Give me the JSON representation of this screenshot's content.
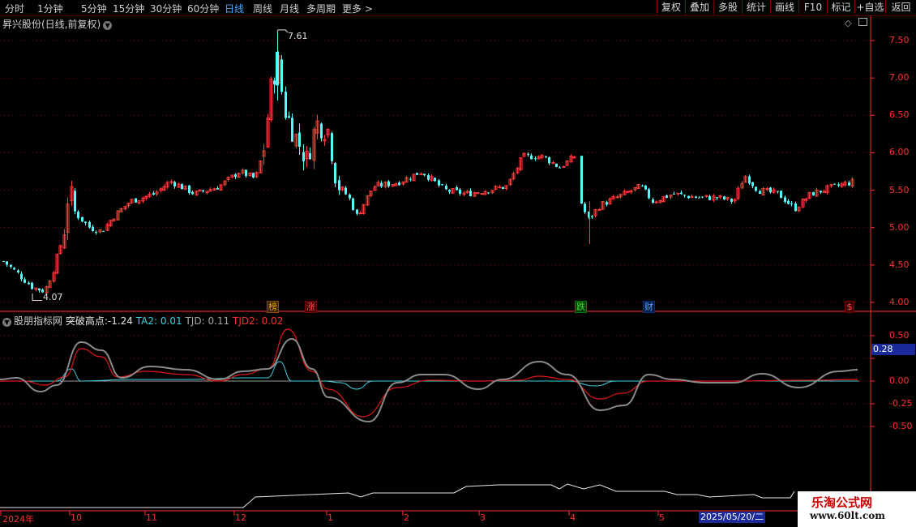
{
  "toolbar": {
    "periods": [
      {
        "label": "分时",
        "active": false
      },
      {
        "label": "1分钟",
        "active": false
      },
      {
        "label": "5分钟",
        "active": false
      },
      {
        "label": "15分钟",
        "active": false
      },
      {
        "label": "30分钟",
        "active": false
      },
      {
        "label": "60分钟",
        "active": false
      },
      {
        "label": "日线",
        "active": true
      },
      {
        "label": "周线",
        "active": false
      },
      {
        "label": "月线",
        "active": false
      },
      {
        "label": "多周期",
        "active": false
      },
      {
        "label": "更多",
        "active": false
      }
    ],
    "right_buttons": [
      "复权",
      "叠加",
      "多股",
      "统计",
      "画线",
      "F10",
      "标记",
      "+自选",
      "返回"
    ]
  },
  "stock_title": "昇兴股份(日线,前复权)",
  "price_axis": [
    "7.50",
    "7.00",
    "6.50",
    "6.00",
    "5.50",
    "5.00",
    "4.50",
    "4.00"
  ],
  "annotations": {
    "high": "7.61",
    "low": "4.07"
  },
  "event_markers": [
    {
      "label": "榜",
      "color": "#e0a000"
    },
    {
      "label": "涨",
      "color": "#e03030"
    },
    {
      "label": "跌",
      "color": "#30c030"
    },
    {
      "label": "财",
      "color": "#4090ff"
    },
    {
      "label": "$",
      "color": "#e03030"
    }
  ],
  "indicator": {
    "name": "股朋指标网",
    "items": [
      {
        "label": "突破高点:",
        "value": "-1.24",
        "color": "#c8c8c8"
      },
      {
        "label": "TA2:",
        "value": "0.01",
        "color": "#40d0e0"
      },
      {
        "label": "TJD:",
        "value": "0.11",
        "color": "#a0a0a0"
      },
      {
        "label": "TJD2:",
        "value": "0.02",
        "color": "#e03030"
      }
    ],
    "axis": [
      "0.50",
      "0.25",
      "0.00",
      "-0.25",
      "-0.50"
    ],
    "current_value": "0.28"
  },
  "date_axis": [
    "2024年",
    "10",
    "11",
    "12",
    "1",
    "2",
    "3",
    "4",
    "5"
  ],
  "date_highlight": "2025/05/20/二",
  "watermark": {
    "line1": "乐淘公式网",
    "line2": "www.60lt.com"
  },
  "colors": {
    "up": "#ff3c3c",
    "down": "#54fcfc",
    "grid": "#8c0000",
    "axis": "#ff3030"
  }
}
